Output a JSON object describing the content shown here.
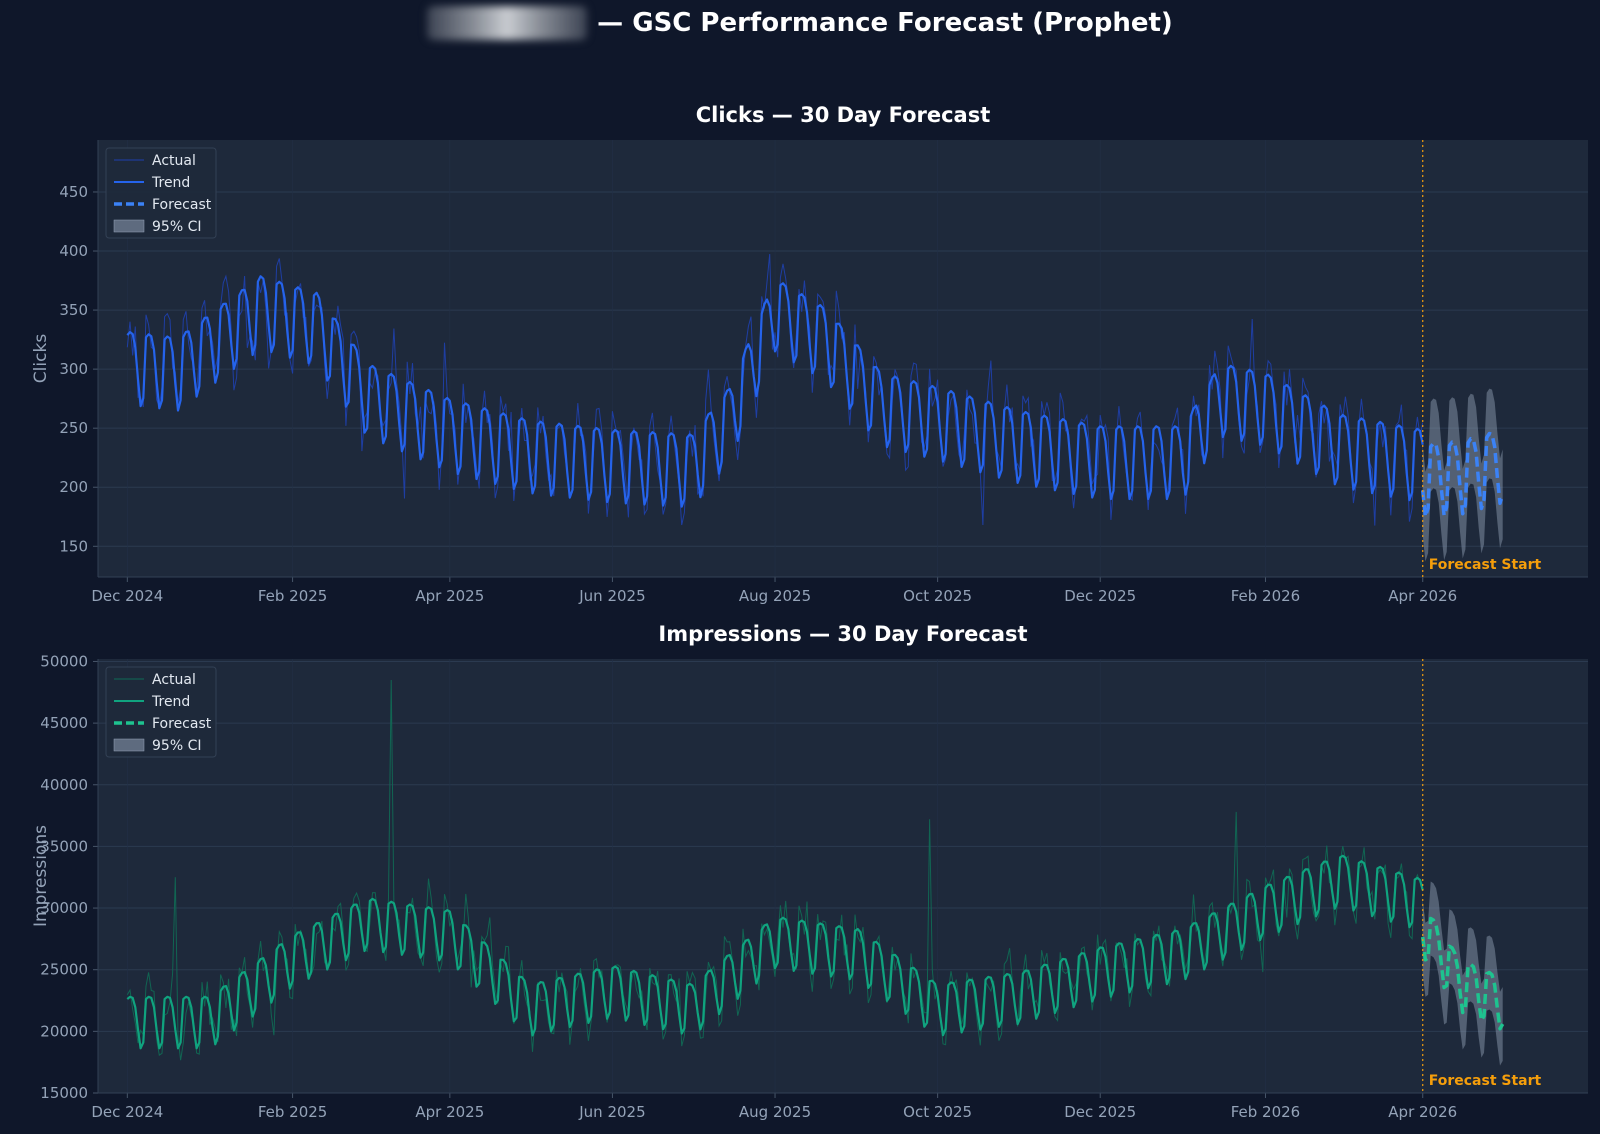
{
  "page": {
    "title_suffix": "— GSC Performance Forecast (Prophet)"
  },
  "chart_data": [
    {
      "type": "line",
      "title": "Clicks — 30 Day Forecast",
      "ylabel": "Clicks",
      "xlabel": "",
      "x_range": [
        "2024-11-20",
        "2026-06-02"
      ],
      "x_ticks": [
        {
          "date": "2024-12-01",
          "label": "Dec 2024"
        },
        {
          "date": "2025-02-01",
          "label": "Feb 2025"
        },
        {
          "date": "2025-04-01",
          "label": "Apr 2025"
        },
        {
          "date": "2025-06-01",
          "label": "Jun 2025"
        },
        {
          "date": "2025-08-01",
          "label": "Aug 2025"
        },
        {
          "date": "2025-10-01",
          "label": "Oct 2025"
        },
        {
          "date": "2025-12-01",
          "label": "Dec 2025"
        },
        {
          "date": "2026-02-01",
          "label": "Feb 2026"
        },
        {
          "date": "2026-04-01",
          "label": "Apr 2026"
        }
      ],
      "ylim": [
        124,
        494
      ],
      "y_ticks": [
        150,
        200,
        250,
        300,
        350,
        400,
        450
      ],
      "grid": true,
      "legend_position": "top-left",
      "legend": [
        "Actual",
        "Trend",
        "Forecast",
        "95% CI"
      ],
      "colors": {
        "actual": "#1e40af",
        "trend": "#2563eb",
        "forecast": "#3b82f6",
        "ci": "#94a3b8"
      },
      "history_start": "2024-12-01",
      "history_end": "2026-04-01",
      "forecast_start": "2026-04-01",
      "forecast_end": "2026-05-01",
      "forecast_start_label": "Forecast Start",
      "trend_anchors": [
        {
          "date": "2024-12-01",
          "value": 305
        },
        {
          "date": "2024-12-20",
          "value": 300
        },
        {
          "date": "2025-01-20",
          "value": 352
        },
        {
          "date": "2025-02-10",
          "value": 338
        },
        {
          "date": "2025-03-01",
          "value": 278
        },
        {
          "date": "2025-04-01",
          "value": 248
        },
        {
          "date": "2025-05-01",
          "value": 230
        },
        {
          "date": "2025-06-01",
          "value": 222
        },
        {
          "date": "2025-07-01",
          "value": 218
        },
        {
          "date": "2025-07-15",
          "value": 258
        },
        {
          "date": "2025-08-01",
          "value": 350
        },
        {
          "date": "2025-08-20",
          "value": 325
        },
        {
          "date": "2025-09-10",
          "value": 270
        },
        {
          "date": "2025-10-01",
          "value": 258
        },
        {
          "date": "2025-11-01",
          "value": 238
        },
        {
          "date": "2025-12-01",
          "value": 225
        },
        {
          "date": "2026-01-01",
          "value": 225
        },
        {
          "date": "2026-01-15",
          "value": 278
        },
        {
          "date": "2026-02-01",
          "value": 270
        },
        {
          "date": "2026-03-01",
          "value": 235
        },
        {
          "date": "2026-04-01",
          "value": 222
        }
      ],
      "forecast_anchors": [
        {
          "date": "2026-04-01",
          "value": 210
        },
        {
          "date": "2026-04-15",
          "value": 212
        },
        {
          "date": "2026-05-01",
          "value": 222
        }
      ],
      "weekly_amplitude": 28,
      "actual_noise": 20,
      "ci_halfwidth": 38
    },
    {
      "type": "line",
      "title": "Impressions — 30 Day Forecast",
      "ylabel": "Impressions",
      "xlabel": "",
      "x_range": [
        "2024-11-20",
        "2026-06-02"
      ],
      "x_ticks": [
        {
          "date": "2024-12-01",
          "label": "Dec 2024"
        },
        {
          "date": "2025-02-01",
          "label": "Feb 2025"
        },
        {
          "date": "2025-04-01",
          "label": "Apr 2025"
        },
        {
          "date": "2025-06-01",
          "label": "Jun 2025"
        },
        {
          "date": "2025-08-01",
          "label": "Aug 2025"
        },
        {
          "date": "2025-10-01",
          "label": "Oct 2025"
        },
        {
          "date": "2025-12-01",
          "label": "Dec 2025"
        },
        {
          "date": "2026-02-01",
          "label": "Feb 2026"
        },
        {
          "date": "2026-04-01",
          "label": "Apr 2026"
        }
      ],
      "ylim": [
        15000,
        50200
      ],
      "y_ticks": [
        15000,
        20000,
        25000,
        30000,
        35000,
        40000,
        45000,
        50000
      ],
      "grid": true,
      "legend_position": "top-left",
      "legend": [
        "Actual",
        "Trend",
        "Forecast",
        "95% CI"
      ],
      "colors": {
        "actual": "#0f6b55",
        "trend": "#10a37f",
        "forecast": "#1ec38f",
        "ci": "#94a3b8"
      },
      "history_start": "2024-12-01",
      "history_end": "2026-04-01",
      "forecast_start": "2026-04-01",
      "forecast_end": "2026-05-01",
      "forecast_start_label": "Forecast Start",
      "trend_anchors": [
        {
          "date": "2024-12-01",
          "value": 21000
        },
        {
          "date": "2025-01-01",
          "value": 21000
        },
        {
          "date": "2025-02-01",
          "value": 26000
        },
        {
          "date": "2025-03-01",
          "value": 29000
        },
        {
          "date": "2025-04-01",
          "value": 28000
        },
        {
          "date": "2025-05-01",
          "value": 22000
        },
        {
          "date": "2025-06-01",
          "value": 23500
        },
        {
          "date": "2025-07-01",
          "value": 22000
        },
        {
          "date": "2025-08-01",
          "value": 27500
        },
        {
          "date": "2025-09-01",
          "value": 26500
        },
        {
          "date": "2025-10-01",
          "value": 22000
        },
        {
          "date": "2025-11-01",
          "value": 23000
        },
        {
          "date": "2025-12-01",
          "value": 25000
        },
        {
          "date": "2026-01-01",
          "value": 26500
        },
        {
          "date": "2026-02-01",
          "value": 30000
        },
        {
          "date": "2026-03-01",
          "value": 32500
        },
        {
          "date": "2026-04-01",
          "value": 30500
        }
      ],
      "forecast_anchors": [
        {
          "date": "2026-04-01",
          "value": 28500
        },
        {
          "date": "2026-04-15",
          "value": 24000
        },
        {
          "date": "2026-05-01",
          "value": 22500
        }
      ],
      "weekly_amplitude": 1900,
      "actual_noise": 1500,
      "ci_halfwidth": 3000,
      "spikes": [
        {
          "date": "2024-12-19",
          "value": 32500
        },
        {
          "date": "2025-03-10",
          "value": 48500
        },
        {
          "date": "2025-09-28",
          "value": 37200
        },
        {
          "date": "2026-01-21",
          "value": 37800
        }
      ]
    }
  ]
}
